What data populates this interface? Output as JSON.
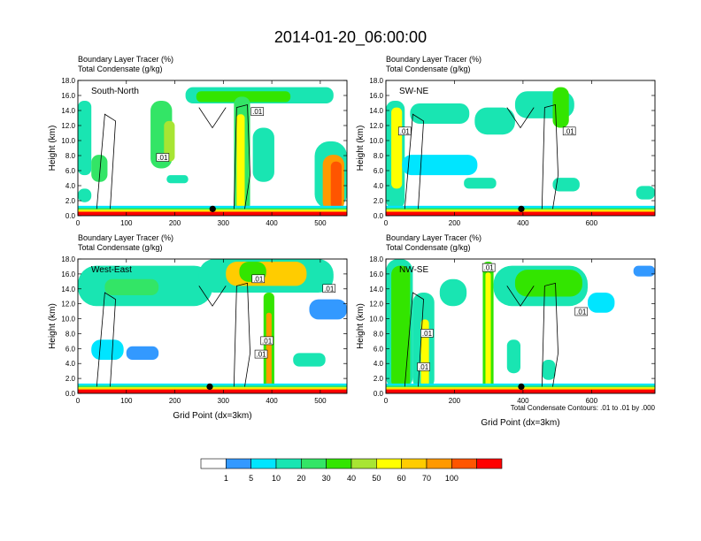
{
  "title": "2014-01-20_06:00:00",
  "colors": {
    "levels": [
      "#ffffff",
      "#3399ff",
      "#00e5ff",
      "#19e5b2",
      "#33e566",
      "#33e500",
      "#a8e533",
      "#ffff00",
      "#ffcc00",
      "#ff9900",
      "#ff5500",
      "#ff0000"
    ]
  },
  "chart_data": [
    {
      "type": "contour",
      "title": "South-North",
      "header_line1": "Boundary Layer Tracer   (%)",
      "header_line2": "Total Condensate   (g/kg)",
      "ylabel": "Height (km)",
      "xlabel": "",
      "x_ticks": [
        0,
        100,
        200,
        300,
        400,
        500
      ],
      "xlim": [
        0,
        555
      ],
      "y_ticks": [
        "0.0",
        "2.0",
        "4.0",
        "6.0",
        "8.0",
        "10.0",
        "12.0",
        "14.0",
        "16.0",
        "18.0"
      ],
      "ylim": [
        0,
        18
      ],
      "contour_labels": [
        {
          "x": 175,
          "y": 7.7,
          "text": ".01"
        },
        {
          "x": 370,
          "y": 13.8,
          "text": ".01"
        }
      ],
      "marker": {
        "x": 278,
        "y": 0.9
      }
    },
    {
      "type": "contour",
      "title": "SW-NE",
      "header_line1": "Boundary Layer Tracer   (%)",
      "header_line2": "Total Condensate   (g/kg)",
      "ylabel": "Height (km)",
      "xlabel": "",
      "x_ticks": [
        0,
        200,
        400,
        600
      ],
      "xlim": [
        0,
        785
      ],
      "y_ticks": [
        "0.0",
        "2.0",
        "4.0",
        "6.0",
        "8.0",
        "10.0",
        "12.0",
        "14.0",
        "16.0",
        "18.0"
      ],
      "ylim": [
        0,
        18
      ],
      "contour_labels": [
        {
          "x": 55,
          "y": 11.2,
          "text": ".01"
        },
        {
          "x": 535,
          "y": 11.2,
          "text": ".01"
        }
      ],
      "marker": {
        "x": 395,
        "y": 0.9
      }
    },
    {
      "type": "contour",
      "title": "West-East",
      "header_line1": "Boundary Layer Tracer   (%)",
      "header_line2": "Total Condensate   (g/kg)",
      "ylabel": "Height (km)",
      "xlabel": "Grid Point (dx=3km)",
      "x_ticks": [
        0,
        100,
        200,
        300,
        400,
        500
      ],
      "xlim": [
        0,
        555
      ],
      "y_ticks": [
        "0.0",
        "2.0",
        "4.0",
        "6.0",
        "8.0",
        "10.0",
        "12.0",
        "14.0",
        "16.0",
        "18.0"
      ],
      "ylim": [
        0,
        18
      ],
      "contour_labels": [
        {
          "x": 372,
          "y": 15.3,
          "text": ".01"
        },
        {
          "x": 518,
          "y": 14.0,
          "text": ".01"
        },
        {
          "x": 390,
          "y": 7.0,
          "text": ".01"
        },
        {
          "x": 378,
          "y": 5.2,
          "text": ".01"
        }
      ],
      "marker": {
        "x": 272,
        "y": 0.9
      }
    },
    {
      "type": "contour",
      "title": "NW-SE",
      "header_line1": "Boundary Layer Tracer   (%)",
      "header_line2": "Total Condensate   (g/kg)",
      "ylabel": "Height (km)",
      "xlabel": "Grid Point (dx=3km)",
      "x_ticks": [
        0,
        200,
        400,
        600
      ],
      "xlim": [
        0,
        785
      ],
      "y_ticks": [
        "0.0",
        "2.0",
        "4.0",
        "6.0",
        "8.0",
        "10.0",
        "12.0",
        "14.0",
        "16.0",
        "18.0"
      ],
      "ylim": [
        0,
        18
      ],
      "contour_labels": [
        {
          "x": 300,
          "y": 16.8,
          "text": ".01"
        },
        {
          "x": 570,
          "y": 10.9,
          "text": ".01"
        },
        {
          "x": 120,
          "y": 8.0,
          "text": ".01"
        },
        {
          "x": 110,
          "y": 3.5,
          "text": ".01"
        }
      ],
      "marker": {
        "x": 395,
        "y": 0.9
      },
      "footnote": "Total Condensate Contours: .01 to .01 by .000"
    }
  ],
  "colorbar": {
    "labels": [
      "1",
      "5",
      "10",
      "20",
      "30",
      "40",
      "50",
      "60",
      "70",
      "100"
    ]
  }
}
